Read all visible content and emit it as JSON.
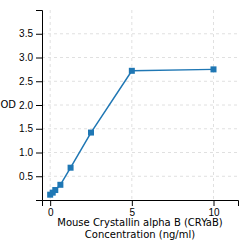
{
  "chart_data": {
    "type": "line",
    "x": [
      0,
      0.156,
      0.313,
      0.625,
      1.25,
      2.5,
      5,
      10
    ],
    "values": [
      0.112,
      0.155,
      0.21,
      0.32,
      0.68,
      1.42,
      2.72,
      2.75
    ],
    "xlabel": "Mouse Crystallin alpha B (CRYaB)\nConcentration (ng/ml)",
    "ylabel": "OD",
    "xlim": [
      -0.5,
      11.5
    ],
    "ylim": [
      0,
      4.0
    ],
    "xticks": [
      0,
      5,
      10
    ],
    "yticks": [
      0.5,
      {
        "value": 1.0,
        "label": "1.0"
      },
      1.5,
      {
        "value": 2.0,
        "label": "2.0"
      },
      2.5,
      {
        "value": 3.0,
        "label": "3.0"
      },
      3.5
    ],
    "grid": true,
    "marker": "square"
  }
}
